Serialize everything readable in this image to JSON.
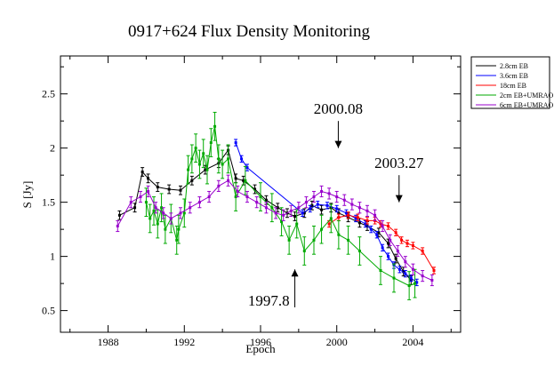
{
  "chart_data": {
    "type": "line",
    "title": "0917+624 Flux Density Monitoring",
    "xlabel": "Epoch",
    "ylabel": "S [Jy]",
    "xlim": [
      1985.5,
      2006.5
    ],
    "ylim": [
      0.3,
      2.85
    ],
    "xticks": [
      1988,
      1992,
      1996,
      2000,
      2004
    ],
    "yticks": [
      0.5,
      1,
      1.5,
      2,
      2.5
    ],
    "xtick_labels": [
      "1988",
      "1992",
      "1996",
      "2000",
      "2004"
    ],
    "ytick_labels": [
      "0.5",
      "1",
      "1.5",
      "2",
      "2.5"
    ],
    "legend_position": "outside-top-right",
    "series": [
      {
        "name": "2.8cm EB",
        "color": "#000000",
        "err": 0.04,
        "x": [
          1988.6,
          1989.4,
          1989.8,
          1990.1,
          1990.6,
          1991.2,
          1991.8,
          1992.4,
          1993.1,
          1993.8,
          1994.3,
          1994.7,
          1995.1,
          1995.7,
          1996.3,
          1996.9,
          1997.4,
          1997.8,
          1998.3,
          1998.7,
          1999.2,
          1999.7,
          2000.1,
          2000.6,
          2001.2,
          2001.6,
          2002.2,
          2002.7,
          2003.1,
          2003.5,
          2003.9
        ],
        "y": [
          1.38,
          1.45,
          1.78,
          1.72,
          1.64,
          1.62,
          1.61,
          1.7,
          1.8,
          1.86,
          1.98,
          1.72,
          1.7,
          1.62,
          1.52,
          1.45,
          1.4,
          1.37,
          1.4,
          1.47,
          1.43,
          1.45,
          1.4,
          1.36,
          1.31,
          1.28,
          1.22,
          1.12,
          0.98,
          0.86,
          0.78
        ]
      },
      {
        "name": "3.6cm EB",
        "color": "#0000ff",
        "err": 0.03,
        "x": [
          1994.7,
          1995.0,
          1995.3,
          1998.2,
          1998.6,
          1999.0,
          1999.5,
          2000.0,
          2000.5,
          2001.0,
          2001.5,
          2001.8,
          2002.1,
          2002.4,
          2002.7,
          2003.0,
          2003.3,
          2003.6,
          2003.9,
          2004.2
        ],
        "y": [
          2.05,
          1.9,
          1.82,
          1.4,
          1.44,
          1.48,
          1.47,
          1.44,
          1.4,
          1.35,
          1.3,
          1.25,
          1.2,
          1.08,
          1.0,
          0.92,
          0.88,
          0.84,
          0.8,
          0.76
        ]
      },
      {
        "name": "18cm EB",
        "color": "#ff0000",
        "err": 0.03,
        "x": [
          1999.6,
          2000.1,
          2000.6,
          2001.1,
          2001.6,
          2002.0,
          2002.3,
          2002.7,
          2003.1,
          2003.4,
          2003.7,
          2004.0,
          2004.5,
          2005.1
        ],
        "y": [
          1.3,
          1.36,
          1.38,
          1.36,
          1.33,
          1.33,
          1.3,
          1.28,
          1.22,
          1.15,
          1.12,
          1.1,
          1.05,
          0.87
        ]
      },
      {
        "name": "2cm EB+UMRAO",
        "color": "#00aa00",
        "err": 0.13,
        "x": [
          1990.0,
          1990.2,
          1990.4,
          1990.6,
          1990.8,
          1991.0,
          1991.3,
          1991.6,
          1991.7,
          1992.0,
          1992.2,
          1992.4,
          1992.6,
          1992.8,
          1993.0,
          1993.2,
          1993.4,
          1993.6,
          1993.8,
          1994.0,
          1994.3,
          1994.7,
          1995.2,
          1996.0,
          1996.6,
          1997.1,
          1997.5,
          1997.9,
          1998.3,
          1998.8,
          1999.2,
          1999.7,
          2000.1,
          2000.6,
          2001.2,
          2002.3,
          2003.0,
          2003.8,
          2004.1
        ],
        "y": [
          1.5,
          1.35,
          1.42,
          1.3,
          1.45,
          1.25,
          1.35,
          1.15,
          1.25,
          1.4,
          1.8,
          1.9,
          2.0,
          1.85,
          1.95,
          1.8,
          2.05,
          2.2,
          1.9,
          1.85,
          1.9,
          1.55,
          1.7,
          1.55,
          1.45,
          1.32,
          1.15,
          1.3,
          1.05,
          1.15,
          1.25,
          1.35,
          1.2,
          1.15,
          1.05,
          0.87,
          0.8,
          0.73,
          0.75
        ]
      },
      {
        "name": "6cm EB+UMRAO",
        "color": "#9900cc",
        "err": 0.05,
        "x": [
          1988.5,
          1989.2,
          1989.7,
          1990.1,
          1990.5,
          1990.9,
          1991.3,
          1991.8,
          1992.3,
          1992.8,
          1993.3,
          1993.8,
          1994.3,
          1994.8,
          1995.3,
          1995.8,
          1996.3,
          1996.8,
          1997.2,
          1997.6,
          1998.0,
          1998.4,
          1998.8,
          1999.2,
          1999.6,
          2000.0,
          2000.4,
          2000.8,
          2001.2,
          2001.6,
          2002.0,
          2002.4,
          2002.8,
          2003.2,
          2003.6,
          2004.0,
          2004.5,
          2005.0
        ],
        "y": [
          1.28,
          1.5,
          1.55,
          1.6,
          1.45,
          1.4,
          1.35,
          1.4,
          1.45,
          1.5,
          1.55,
          1.65,
          1.7,
          1.6,
          1.55,
          1.5,
          1.45,
          1.4,
          1.38,
          1.42,
          1.45,
          1.5,
          1.55,
          1.6,
          1.58,
          1.55,
          1.52,
          1.48,
          1.45,
          1.42,
          1.38,
          1.28,
          1.15,
          1.05,
          0.95,
          0.88,
          0.82,
          0.78
        ]
      }
    ],
    "annotations": [
      {
        "label": "2000.08",
        "x": 2000.08,
        "direction": "down",
        "y_from": 2.25,
        "y_to": 2.0
      },
      {
        "label": "2003.27",
        "x": 2003.27,
        "direction": "down",
        "y_from": 1.75,
        "y_to": 1.5
      },
      {
        "label": "1997.8",
        "x": 1997.8,
        "direction": "up",
        "y_from": 0.53,
        "y_to": 0.88
      }
    ]
  }
}
